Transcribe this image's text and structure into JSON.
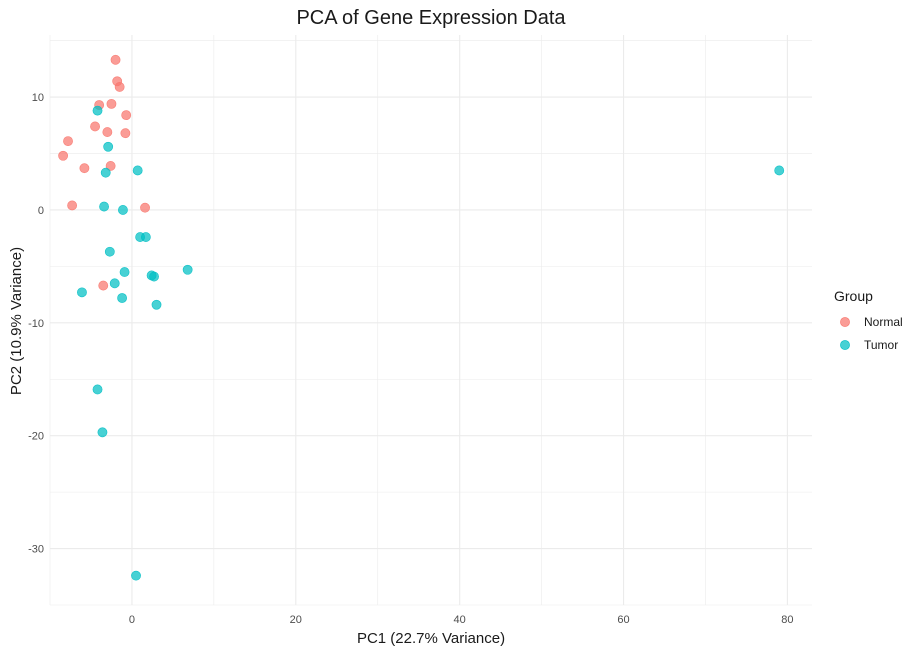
{
  "chart_data": {
    "type": "scatter",
    "title": "PCA of Gene Expression Data",
    "xlabel": "PC1 (22.7% Variance)",
    "ylabel": "PC2 (10.9% Variance)",
    "xlim": [
      -10,
      83
    ],
    "ylim": [
      -35,
      15.5
    ],
    "x_ticks": [
      0,
      20,
      40,
      60,
      80
    ],
    "y_ticks": [
      -30,
      -20,
      -10,
      0,
      10
    ],
    "grid": true,
    "legend": {
      "title": "Group",
      "position": "right"
    },
    "series": [
      {
        "name": "Normal",
        "color": "#F8766D",
        "points": [
          {
            "x": -2.0,
            "y": 13.3
          },
          {
            "x": -1.8,
            "y": 11.4
          },
          {
            "x": -1.5,
            "y": 10.9
          },
          {
            "x": -4.0,
            "y": 9.3
          },
          {
            "x": -2.5,
            "y": 9.4
          },
          {
            "x": -0.7,
            "y": 8.4
          },
          {
            "x": -4.5,
            "y": 7.4
          },
          {
            "x": -3.0,
            "y": 6.9
          },
          {
            "x": -0.8,
            "y": 6.8
          },
          {
            "x": -7.8,
            "y": 6.1
          },
          {
            "x": -8.4,
            "y": 4.8
          },
          {
            "x": -5.8,
            "y": 3.7
          },
          {
            "x": -2.6,
            "y": 3.9
          },
          {
            "x": -7.3,
            "y": 0.4
          },
          {
            "x": 1.6,
            "y": 0.2
          },
          {
            "x": -3.5,
            "y": -6.7
          }
        ]
      },
      {
        "name": "Tumor",
        "color": "#00BFC4",
        "points": [
          {
            "x": -4.2,
            "y": 8.8
          },
          {
            "x": -2.9,
            "y": 5.6
          },
          {
            "x": -3.2,
            "y": 3.3
          },
          {
            "x": 0.7,
            "y": 3.5
          },
          {
            "x": -3.4,
            "y": 0.3
          },
          {
            "x": -1.1,
            "y": 0.0
          },
          {
            "x": 1.0,
            "y": -2.4
          },
          {
            "x": 1.7,
            "y": -2.4
          },
          {
            "x": -2.7,
            "y": -3.7
          },
          {
            "x": -0.9,
            "y": -5.5
          },
          {
            "x": 2.4,
            "y": -5.8
          },
          {
            "x": 2.7,
            "y": -5.9
          },
          {
            "x": 6.8,
            "y": -5.3
          },
          {
            "x": -2.1,
            "y": -6.5
          },
          {
            "x": -6.1,
            "y": -7.3
          },
          {
            "x": -1.2,
            "y": -7.8
          },
          {
            "x": 3.0,
            "y": -8.4
          },
          {
            "x": -4.2,
            "y": -15.9
          },
          {
            "x": -3.6,
            "y": -19.7
          },
          {
            "x": 0.5,
            "y": -32.4
          },
          {
            "x": 79.0,
            "y": 3.5
          }
        ]
      }
    ]
  }
}
